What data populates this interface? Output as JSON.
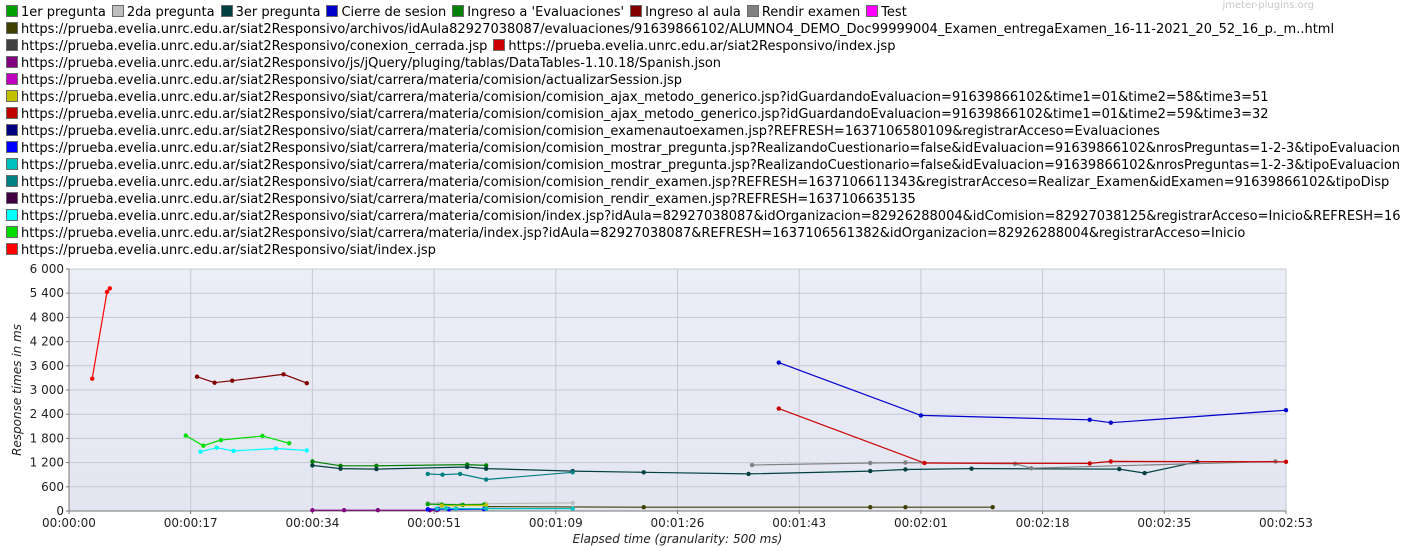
{
  "watermark": "jmeter-plugins.org",
  "chart_data": {
    "type": "line",
    "title": "",
    "xlabel": "Elapsed time (granularity: 500 ms)",
    "ylabel": "Response times in ms",
    "xlim": [
      0,
      173
    ],
    "ylim": [
      0,
      6000
    ],
    "grid": true,
    "legend_placement": "top",
    "x_ticks": [
      {
        "v": 0,
        "label": "00:00:00"
      },
      {
        "v": 17.3,
        "label": "00:00:17"
      },
      {
        "v": 34.6,
        "label": "00:00:34"
      },
      {
        "v": 51.9,
        "label": "00:00:51"
      },
      {
        "v": 69.2,
        "label": "00:01:09"
      },
      {
        "v": 86.5,
        "label": "00:01:26"
      },
      {
        "v": 103.8,
        "label": "00:01:43"
      },
      {
        "v": 121.1,
        "label": "00:02:01"
      },
      {
        "v": 138.4,
        "label": "00:02:18"
      },
      {
        "v": 155.7,
        "label": "00:02:35"
      },
      {
        "v": 173,
        "label": "00:02:53"
      }
    ],
    "y_ticks": [
      {
        "v": 0,
        "label": "0"
      },
      {
        "v": 600,
        "label": "600"
      },
      {
        "v": 1200,
        "label": "1 200"
      },
      {
        "v": 1800,
        "label": "1 800"
      },
      {
        "v": 2400,
        "label": "2 400"
      },
      {
        "v": 3000,
        "label": "3 000"
      },
      {
        "v": 3600,
        "label": "3 600"
      },
      {
        "v": 4200,
        "label": "4 200"
      },
      {
        "v": 4800,
        "label": "4 800"
      },
      {
        "v": 5400,
        "label": "5 400"
      },
      {
        "v": 6000,
        "label": "6 000"
      }
    ],
    "legend": [
      [
        "1er pregunta",
        "2da pregunta",
        "3er pregunta",
        "Cierre de sesion",
        "Ingreso a 'Evaluaciones'",
        "Ingreso al aula",
        "Rendir examen",
        "Test"
      ],
      [
        "https://prueba.evelia.unrc.edu.ar/siat2Responsivo/archivos/idAula82927038087/evaluaciones/91639866102/ALUMNO4_DEMO_Doc99999004_Examen_entregaExamen_16-11-2021_20_52_16_p._m..html"
      ],
      [
        "https://prueba.evelia.unrc.edu.ar/siat2Responsivo/conexion_cerrada.jsp",
        "https://prueba.evelia.unrc.edu.ar/siat2Responsivo/index.jsp"
      ],
      [
        "https://prueba.evelia.unrc.edu.ar/siat2Responsivo/js/jQuery/pluging/tablas/DataTables-1.10.18/Spanish.json"
      ],
      [
        "https://prueba.evelia.unrc.edu.ar/siat2Responsivo/siat/carrera/materia/comision/actualizarSession.jsp"
      ],
      [
        "https://prueba.evelia.unrc.edu.ar/siat2Responsivo/siat/carrera/materia/comision/comision_ajax_metodo_generico.jsp?idGuardandoEvaluacion=91639866102&time1=01&time2=58&time3=51"
      ],
      [
        "https://prueba.evelia.unrc.edu.ar/siat2Responsivo/siat/carrera/materia/comision/comision_ajax_metodo_generico.jsp?idGuardandoEvaluacion=91639866102&time1=01&time2=59&time3=32"
      ],
      [
        "https://prueba.evelia.unrc.edu.ar/siat2Responsivo/siat/carrera/materia/comision/comision_examenautoexamen.jsp?REFRESH=1637106580109&registrarAcceso=Evaluaciones"
      ],
      [
        "https://prueba.evelia.unrc.edu.ar/siat2Responsivo/siat/carrera/materia/comision/comision_mostrar_pregunta.jsp?RealizandoCuestionario=false&idEvaluacion=91639866102&nrosPreguntas=1-2-3&tipoEvaluacion"
      ],
      [
        "https://prueba.evelia.unrc.edu.ar/siat2Responsivo/siat/carrera/materia/comision/comision_mostrar_pregunta.jsp?RealizandoCuestionario=false&idEvaluacion=91639866102&nrosPreguntas=1-2-3&tipoEvaluacion"
      ],
      [
        "https://prueba.evelia.unrc.edu.ar/siat2Responsivo/siat/carrera/materia/comision/comision_rendir_examen.jsp?REFRESH=1637106611343&registrarAcceso=Realizar_Examen&idExamen=91639866102&tipoDisp"
      ],
      [
        "https://prueba.evelia.unrc.edu.ar/siat2Responsivo/siat/carrera/materia/comision/comision_rendir_examen.jsp?REFRESH=1637106635135"
      ],
      [
        "https://prueba.evelia.unrc.edu.ar/siat2Responsivo/siat/carrera/materia/comision/index.jsp?idAula=82927038087&idOrganizacion=82926288004&idComision=82927038125&registrarAcceso=Inicio&REFRESH=16"
      ],
      [
        "https://prueba.evelia.unrc.edu.ar/siat2Responsivo/siat/carrera/materia/index.jsp?idAula=82927038087&REFRESH=1637106561382&idOrganizacion=82926288004&registrarAcceso=Inicio"
      ],
      [
        "https://prueba.evelia.unrc.edu.ar/siat2Responsivo/siat/index.jsp"
      ]
    ],
    "legend_colors": [
      [
        "#00a000",
        "#bfbfbf",
        "#004040",
        "#0000cc",
        "#008000",
        "#800000",
        "#808080",
        "#ff00ff"
      ],
      [
        "#404000"
      ],
      [
        "#404040",
        "#cc0000"
      ],
      [
        "#800080"
      ],
      [
        "#c000c0"
      ],
      [
        "#c0c000"
      ],
      [
        "#c00000"
      ],
      [
        "#000080"
      ],
      [
        "#0000ff"
      ],
      [
        "#00c0c0"
      ],
      [
        "#008080"
      ],
      [
        "#400040"
      ],
      [
        "#00ffff"
      ],
      [
        "#00dd00"
      ],
      [
        "#ff0000"
      ]
    ],
    "series": [
      {
        "name": "https://prueba.evelia.unrc.edu.ar/siat2Responsivo/siat/index.jsp",
        "color": "#ff0000",
        "x": [
          3.3,
          5.4,
          5.8
        ],
        "y": [
          3280,
          5430,
          5520
        ]
      },
      {
        "name": "Ingreso al aula",
        "color": "#800000",
        "x": [
          18.2,
          20.7,
          23.2,
          30.5,
          33.8
        ],
        "y": [
          3330,
          3180,
          3230,
          3390,
          3170
        ]
      },
      {
        "name": "https://prueba.evelia.unrc.edu.ar/siat2Responsivo/siat/carrera/materia/index.jsp?idAula=82927038087&REFRESH=1637106561382&idOrganizacion=82926288004&registrarAcceso=Inicio",
        "color": "#00dd00",
        "x": [
          16.6,
          19.1,
          21.6,
          27.5,
          31.3
        ],
        "y": [
          1870,
          1620,
          1760,
          1860,
          1680
        ]
      },
      {
        "name": "https://prueba.evelia.unrc.edu.ar/siat2Responsivo/siat/carrera/materia/comision/index.jsp?idAula=82927038087&idOrganizacion=82926288004&idComision=82927038125&registrarAcceso=Inicio&REFRESH=16",
        "color": "#00ffff",
        "x": [
          18.7,
          21.0,
          23.4,
          29.4,
          33.8
        ],
        "y": [
          1470,
          1570,
          1490,
          1550,
          1500
        ]
      },
      {
        "name": "Ingreso a 'Evaluaciones'",
        "color": "#008000",
        "x": [
          34.6,
          38.6,
          43.7,
          56.6,
          59.3
        ],
        "y": [
          1230,
          1120,
          1120,
          1150,
          1130
        ]
      },
      {
        "name": "3er pregunta",
        "color": "#004040",
        "x": [
          34.6,
          38.6,
          43.7,
          56.6,
          59.3,
          71.6,
          81.7,
          96.6,
          113.9,
          118.9,
          128.3,
          149.3,
          152.9,
          160.4
        ],
        "y": [
          1130,
          1050,
          1040,
          1090,
          1050,
          990,
          960,
          920,
          990,
          1030,
          1050,
          1040,
          940,
          1220
        ]
      },
      {
        "name": "https://prueba.evelia.unrc.edu.ar/siat2Responsivo/siat/carrera/materia/comision/comision_rendir_examen.jsp?REFRESH=1637106611343&registrarAcceso=Realizar_Examen&idExamen=91639866102&tipoDisp",
        "color": "#008080",
        "x": [
          51.0,
          53.1,
          55.6,
          59.3,
          71.6
        ],
        "y": [
          920,
          900,
          920,
          780,
          960
        ]
      },
      {
        "name": "Rendir examen",
        "color": "#808080",
        "x": [
          97.1,
          113.9,
          118.9,
          134.5,
          136.8,
          171.5
        ],
        "y": [
          1140,
          1190,
          1200,
          1170,
          1060,
          1230
        ]
      },
      {
        "name": "Cierre de sesion",
        "color": "#0000cc",
        "x": [
          100.9,
          121.1,
          145.1,
          148.1,
          173.0
        ],
        "y": [
          3680,
          2370,
          2260,
          2190,
          2500
        ]
      },
      {
        "name": "https://prueba.evelia.unrc.edu.ar/siat2Responsivo/index.jsp",
        "color": "#cc0000",
        "x": [
          100.9,
          121.6,
          145.1,
          148.1,
          173.0
        ],
        "y": [
          2540,
          1190,
          1180,
          1230,
          1220
        ]
      },
      {
        "name": "https://prueba.evelia.unrc.edu.ar/siat2Responsivo/archivos/idAula82927038087/evaluaciones/91639866102/ALUMNO4_DEMO_Doc99999004_Examen_entregaExamen_16-11-2021_20_52_16_p._m..html",
        "color": "#404000",
        "x": [
          59.3,
          81.7,
          113.9,
          118.9,
          131.3
        ],
        "y": [
          110,
          95,
          95,
          95,
          95
        ]
      },
      {
        "name": "2da pregunta",
        "color": "#bfbfbf",
        "x": [
          51.0,
          52.5,
          55.6,
          59.3,
          71.6
        ],
        "y": [
          200,
          180,
          160,
          180,
          200
        ]
      },
      {
        "name": "1er pregunta",
        "color": "#00a000",
        "x": [
          51.0,
          53.0,
          56.0,
          59.0
        ],
        "y": [
          170,
          160,
          150,
          160
        ]
      },
      {
        "name": "https://prueba.evelia.unrc.edu.ar/siat2Responsivo/siat/carrera/materia/comision/comision_ajax_metodo_generico.jsp?idGuardandoEvaluacion=91639866102&time1=01&time2=58&time3=51",
        "color": "#c0c000",
        "x": [
          53.0,
          59.3
        ],
        "y": [
          130,
          140
        ]
      },
      {
        "name": "https://prueba.evelia.unrc.edu.ar/siat2Responsivo/js/jQuery/pluging/tablas/DataTables-1.10.18/Spanish.json",
        "color": "#800080",
        "x": [
          34.6,
          39.1,
          43.9,
          51.3,
          52.3
        ],
        "y": [
          20,
          20,
          20,
          20,
          20
        ]
      },
      {
        "name": "https://prueba.evelia.unrc.edu.ar/siat2Responsivo/siat/carrera/materia/comision/comision_mostrar_pregunta.jsp?RealizandoCuestionario=false&idEvaluacion=91639866102&nrosPreguntas=1-2-3&tipoEvaluacion",
        "color": "#0000ff",
        "x": [
          51.0,
          52.5,
          54.0,
          59.0
        ],
        "y": [
          40,
          50,
          40,
          45
        ]
      },
      {
        "name": "https://prueba.evelia.unrc.edu.ar/siat2Responsivo/siat/carrera/materia/comision/comision_mostrar_pregunta.jsp?RealizandoCuestionario=false&idEvaluacion=91639866102&nrosPreguntas=1-2-3&tipoEvaluacion",
        "color": "#00c0c0",
        "x": [
          52.3,
          53.6,
          55.0,
          59.3,
          71.6
        ],
        "y": [
          60,
          65,
          60,
          60,
          60
        ]
      }
    ]
  }
}
